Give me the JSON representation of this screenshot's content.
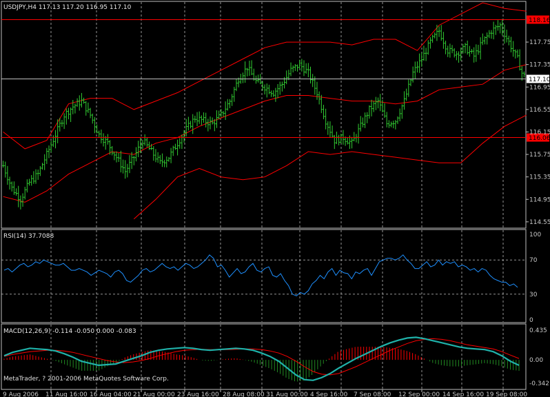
{
  "window": {
    "symbol_header": "USDJPY,H4  117.13 117.20 116.95 117.10",
    "copyright": "MetaTrader, ? 2001-2006 MetaQuotes Software Corp."
  },
  "colors": {
    "background": "#000000",
    "frame": "#c0c0c0",
    "grid": "#c8c8c8",
    "bars": "#32cd32",
    "bands": "#ff0000",
    "level_line": "#ff0000",
    "bid_line": "#c0c0c0",
    "rsi": "#1e90ff",
    "macd_main": "#20b2aa",
    "macd_signal": "#ff0000",
    "macd_hist_pos": "#ff0000",
    "macd_hist_neg": "#228b22"
  },
  "chart_data": [
    {
      "type": "ohlc",
      "title": "USDJPY,H4  117.13 117.20 116.95 117.10",
      "ylim": [
        114.45,
        118.45
      ],
      "y_ticks": [
        "117.75",
        "117.35",
        "116.95",
        "116.55",
        "116.15",
        "115.75",
        "115.35",
        "114.95",
        "114.55"
      ],
      "y_tick_values": [
        117.75,
        117.35,
        116.95,
        116.55,
        116.15,
        115.75,
        115.35,
        114.95,
        114.55
      ],
      "x_labels": [
        "9 Aug 2006",
        "11 Aug 16:00",
        "16 Aug 04:00",
        "21 Aug 00:00",
        "23 Aug 16:00",
        "28 Aug 08:00",
        "31 Aug 00:00",
        "4 Sep 16:00",
        "7 Sep 08:00",
        "12 Sep 00:00",
        "14 Sep 16:00",
        "19 Sep 08:00"
      ],
      "horizontal_lines": [
        {
          "label": "118.16",
          "value": 118.16,
          "style": "level"
        },
        {
          "label": "116.06",
          "value": 116.06,
          "style": "level"
        },
        {
          "label": "117.10",
          "value": 117.1,
          "style": "bid"
        }
      ],
      "close_points": [
        [
          0,
          115.55
        ],
        [
          4,
          115.15
        ],
        [
          8,
          114.95
        ],
        [
          12,
          115.25
        ],
        [
          16,
          115.4
        ],
        [
          20,
          115.75
        ],
        [
          24,
          116.1
        ],
        [
          28,
          116.45
        ],
        [
          32,
          116.6
        ],
        [
          36,
          116.7
        ],
        [
          40,
          116.45
        ],
        [
          44,
          116.1
        ],
        [
          48,
          115.95
        ],
        [
          52,
          115.7
        ],
        [
          56,
          115.45
        ],
        [
          60,
          115.7
        ],
        [
          64,
          116.0
        ],
        [
          68,
          115.8
        ],
        [
          72,
          115.6
        ],
        [
          76,
          115.7
        ],
        [
          80,
          115.95
        ],
        [
          84,
          116.2
        ],
        [
          88,
          116.4
        ],
        [
          92,
          116.35
        ],
        [
          96,
          116.3
        ],
        [
          100,
          116.45
        ],
        [
          104,
          116.7
        ],
        [
          108,
          117.1
        ],
        [
          112,
          117.3
        ],
        [
          116,
          117.05
        ],
        [
          120,
          116.95
        ],
        [
          124,
          116.85
        ],
        [
          128,
          117.0
        ],
        [
          132,
          117.25
        ],
        [
          136,
          117.35
        ],
        [
          140,
          117.2
        ],
        [
          144,
          116.85
        ],
        [
          148,
          116.35
        ],
        [
          152,
          116.0
        ],
        [
          156,
          116.05
        ],
        [
          160,
          115.95
        ],
        [
          164,
          116.25
        ],
        [
          168,
          116.55
        ],
        [
          172,
          116.7
        ],
        [
          176,
          116.3
        ],
        [
          180,
          116.35
        ],
        [
          184,
          116.7
        ],
        [
          188,
          117.2
        ],
        [
          192,
          117.45
        ],
        [
          196,
          117.75
        ],
        [
          200,
          117.95
        ],
        [
          204,
          117.6
        ],
        [
          208,
          117.55
        ],
        [
          212,
          117.65
        ],
        [
          216,
          117.5
        ],
        [
          220,
          117.75
        ],
        [
          224,
          117.95
        ],
        [
          228,
          118.05
        ],
        [
          232,
          117.75
        ],
        [
          236,
          117.45
        ],
        [
          238,
          117.2
        ],
        [
          240,
          117.1
        ]
      ],
      "bands_upper": [
        [
          0,
          116.15
        ],
        [
          10,
          115.85
        ],
        [
          20,
          116.0
        ],
        [
          30,
          116.65
        ],
        [
          40,
          116.75
        ],
        [
          50,
          116.75
        ],
        [
          60,
          116.55
        ],
        [
          70,
          116.7
        ],
        [
          80,
          116.85
        ],
        [
          90,
          117.05
        ],
        [
          100,
          117.25
        ],
        [
          110,
          117.45
        ],
        [
          120,
          117.65
        ],
        [
          130,
          117.75
        ],
        [
          140,
          117.75
        ],
        [
          150,
          117.75
        ],
        [
          160,
          117.7
        ],
        [
          170,
          117.8
        ],
        [
          180,
          117.8
        ],
        [
          190,
          117.6
        ],
        [
          200,
          118.05
        ],
        [
          210,
          118.25
        ],
        [
          220,
          118.45
        ],
        [
          230,
          118.35
        ],
        [
          240,
          118.3
        ]
      ],
      "bands_middle": [
        [
          0,
          115.0
        ],
        [
          10,
          114.9
        ],
        [
          20,
          115.1
        ],
        [
          30,
          115.4
        ],
        [
          40,
          115.6
        ],
        [
          50,
          115.8
        ],
        [
          60,
          115.75
        ],
        [
          70,
          115.95
        ],
        [
          80,
          116.05
        ],
        [
          90,
          116.25
        ],
        [
          100,
          116.4
        ],
        [
          110,
          116.55
        ],
        [
          120,
          116.7
        ],
        [
          130,
          116.8
        ],
        [
          140,
          116.8
        ],
        [
          150,
          116.75
        ],
        [
          160,
          116.7
        ],
        [
          170,
          116.7
        ],
        [
          180,
          116.65
        ],
        [
          190,
          116.7
        ],
        [
          200,
          116.9
        ],
        [
          210,
          116.95
        ],
        [
          220,
          117.0
        ],
        [
          230,
          117.25
        ],
        [
          240,
          117.35
        ]
      ],
      "bands_lower": [
        [
          60,
          114.6
        ],
        [
          70,
          114.95
        ],
        [
          80,
          115.35
        ],
        [
          90,
          115.5
        ],
        [
          100,
          115.35
        ],
        [
          110,
          115.3
        ],
        [
          120,
          115.35
        ],
        [
          130,
          115.55
        ],
        [
          140,
          115.8
        ],
        [
          150,
          115.75
        ],
        [
          160,
          115.8
        ],
        [
          170,
          115.75
        ],
        [
          180,
          115.7
        ],
        [
          190,
          115.65
        ],
        [
          200,
          115.6
        ],
        [
          210,
          115.6
        ],
        [
          220,
          115.95
        ],
        [
          230,
          116.25
        ],
        [
          240,
          116.45
        ]
      ]
    },
    {
      "type": "line",
      "title": "RSI(14) 37.7088",
      "ylim": [
        0,
        100
      ],
      "y_ticks": [
        "100",
        "70",
        "30",
        "0"
      ],
      "y_tick_values": [
        100,
        70,
        30,
        0
      ],
      "levels": [
        70,
        30
      ],
      "series": [
        {
          "values": [
            58,
            60,
            56,
            60,
            64,
            66,
            62,
            64,
            68,
            66,
            70,
            68,
            66,
            64,
            64,
            66,
            62,
            58,
            58,
            60,
            58,
            56,
            52,
            55,
            58,
            56,
            54,
            50,
            56,
            58,
            54,
            46,
            44,
            48,
            52,
            58,
            60,
            56,
            58,
            62,
            66,
            62,
            60,
            62,
            58,
            62,
            66,
            64,
            60,
            62,
            66,
            70,
            76,
            72,
            62,
            64,
            58,
            50,
            55,
            60,
            54,
            56,
            62,
            66,
            58,
            56,
            60,
            62,
            52,
            50,
            54,
            46,
            40,
            30,
            28,
            32,
            30,
            34,
            42,
            46,
            52,
            48,
            56,
            60,
            52,
            58,
            55,
            54,
            48,
            56,
            54,
            58,
            60,
            52,
            60,
            68,
            70,
            72,
            72,
            70,
            72,
            76,
            70,
            66,
            60,
            60,
            64,
            68,
            62,
            64,
            70,
            64,
            68,
            66,
            68,
            62,
            64,
            62,
            58,
            60,
            56,
            60,
            58,
            52,
            48,
            46,
            44,
            44,
            40,
            42,
            38
          ]
        }
      ]
    },
    {
      "type": "line",
      "title": "MACD(12,26,9) -0.114 -0.050 0.000 -0.083",
      "ylim": [
        -0.342,
        0.435
      ],
      "y_ticks": [
        "0.435",
        "0.00",
        "-0.342"
      ],
      "y_tick_values": [
        0.435,
        0.0,
        -0.342
      ],
      "series": [
        {
          "values": [
            0.06,
            0.11,
            0.14,
            0.17,
            0.16,
            0.15,
            0.13,
            0.09,
            0.04,
            -0.02,
            -0.05,
            -0.08,
            -0.07,
            -0.06,
            -0.02,
            0.02,
            0.06,
            0.11,
            0.14,
            0.16,
            0.17,
            0.18,
            0.17,
            0.15,
            0.14,
            0.15,
            0.16,
            0.17,
            0.16,
            0.14,
            0.1,
            0.05,
            -0.02,
            -0.12,
            -0.22,
            -0.29,
            -0.3,
            -0.26,
            -0.2,
            -0.12,
            -0.05,
            0.02,
            0.08,
            0.14,
            0.2,
            0.25,
            0.29,
            0.32,
            0.33,
            0.31,
            0.28,
            0.25,
            0.22,
            0.19,
            0.17,
            0.16,
            0.15,
            0.12,
            0.06,
            -0.02,
            -0.08
          ]
        },
        {
          "values": [
            0.05,
            0.08,
            0.1,
            0.12,
            0.13,
            0.14,
            0.14,
            0.13,
            0.11,
            0.08,
            0.05,
            0.02,
            -0.01,
            -0.03,
            -0.04,
            -0.03,
            -0.01,
            0.02,
            0.06,
            0.09,
            0.12,
            0.14,
            0.15,
            0.155,
            0.15,
            0.15,
            0.15,
            0.155,
            0.16,
            0.16,
            0.15,
            0.13,
            0.1,
            0.05,
            -0.02,
            -0.1,
            -0.17,
            -0.21,
            -0.22,
            -0.2,
            -0.15,
            -0.1,
            -0.04,
            0.02,
            0.08,
            0.14,
            0.19,
            0.24,
            0.28,
            0.3,
            0.31,
            0.3,
            0.28,
            0.25,
            0.22,
            0.2,
            0.18,
            0.16,
            0.12,
            0.07,
            0.02
          ]
        }
      ]
    }
  ]
}
